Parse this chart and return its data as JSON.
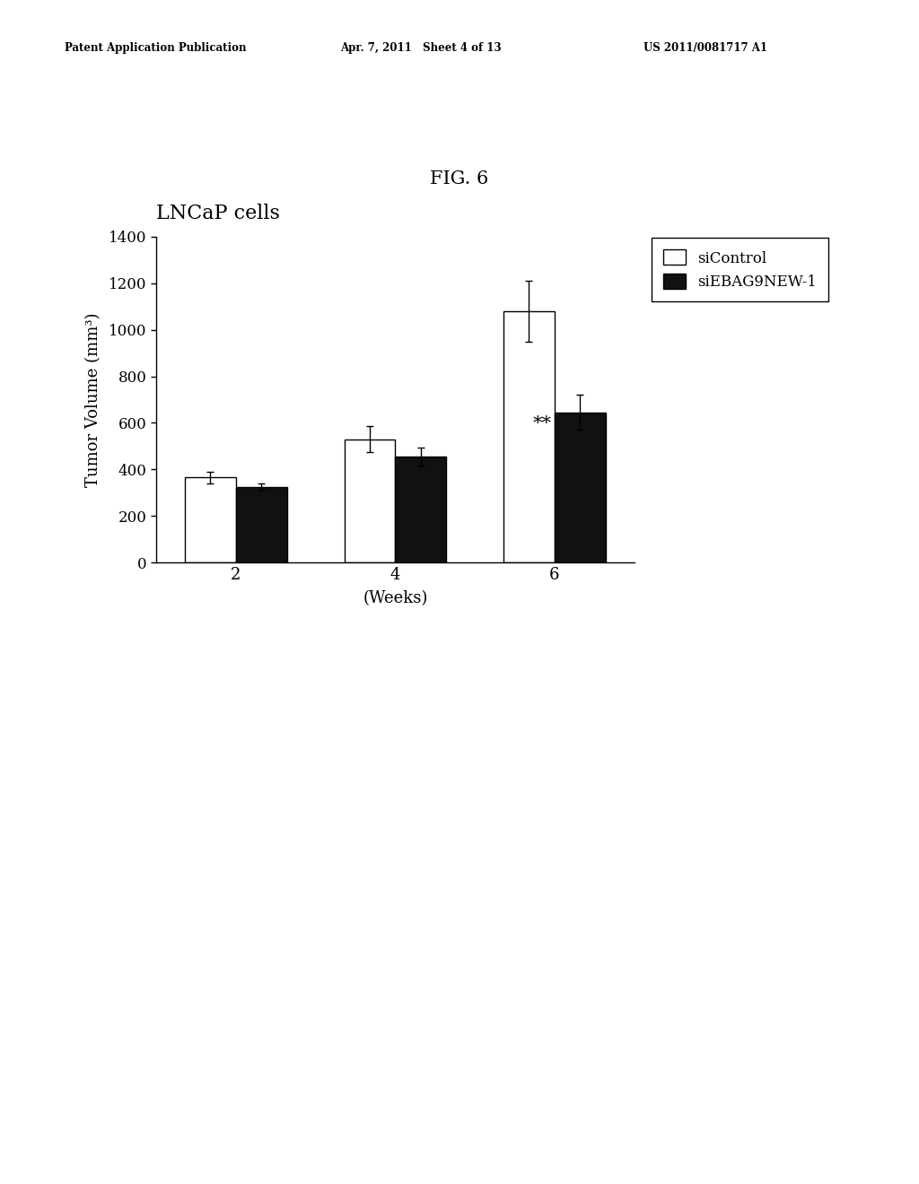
{
  "title": "FIG. 6",
  "cell_label": "LNCaP cells",
  "xlabel": "(Weeks)",
  "ylabel": "Tumor Volume (mm³)",
  "xtick_labels": [
    "2",
    "4",
    "6"
  ],
  "siControl_values": [
    365,
    530,
    1080
  ],
  "siControl_errors": [
    25,
    55,
    130
  ],
  "siEBAG9_values": [
    325,
    455,
    645
  ],
  "siEBAG9_errors": [
    15,
    40,
    75
  ],
  "ylim": [
    0,
    1400
  ],
  "yticks": [
    0,
    200,
    400,
    600,
    800,
    1000,
    1200,
    1400
  ],
  "legend_labels": [
    "siControl",
    "siEBAG9NEW-1"
  ],
  "bar_width": 0.32,
  "significance_label": "**",
  "header_left": "Patent Application Publication",
  "header_center": "Apr. 7, 2011   Sheet 4 of 13",
  "header_right": "US 2011/0081717 A1",
  "background_color": "#ffffff",
  "bar_color_control": "#ffffff",
  "bar_color_siebag": "#111111",
  "bar_edge_color": "#000000"
}
